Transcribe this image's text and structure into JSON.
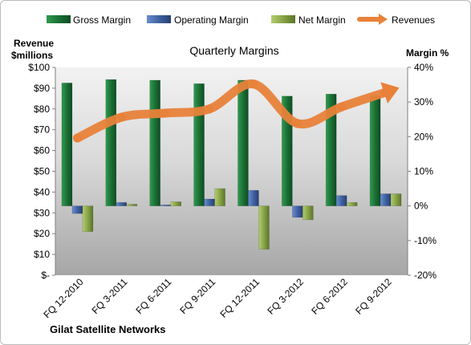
{
  "chart_data": {
    "type": "bar",
    "title": "Quarterly Margins",
    "left_axis_label_line1": "Revenue",
    "left_axis_label_line2": "$millions",
    "right_axis_label": "Margin  %",
    "company": "Gilat Satellite Networks",
    "categories": [
      "FQ 12-2010",
      "FQ 3-2011",
      "FQ 6-2011",
      "FQ 9-2011",
      "FQ 12-2011",
      "FQ 3-2012",
      "FQ 6-2012",
      "FQ 9-2012"
    ],
    "series": [
      {
        "name": "Gross Margin",
        "axis": "right",
        "color": "#1f7a3a",
        "values": [
          35.5,
          36.5,
          36.3,
          35.3,
          36.3,
          31.7,
          32.3,
          31.8
        ]
      },
      {
        "name": "Operating Margin",
        "axis": "right",
        "color": "#4a6eae",
        "values": [
          -2.2,
          1.0,
          0.3,
          2.0,
          4.5,
          -3.3,
          3.0,
          3.5
        ]
      },
      {
        "name": "Net Margin",
        "axis": "right",
        "color": "#8aa54a",
        "values": [
          -7.4,
          0.5,
          1.2,
          5.0,
          -12.5,
          -4.0,
          1.0,
          3.5
        ]
      },
      {
        "name": "Revenues",
        "axis": "left",
        "color": "#e8823a",
        "values": [
          66,
          76,
          78,
          80,
          92,
          73,
          81,
          88
        ]
      }
    ],
    "left_axis": {
      "min": 0,
      "max": 100,
      "step": 10,
      "tick_labels": [
        "$-",
        "$10",
        "$20",
        "$30",
        "$40",
        "$50",
        "$60",
        "$70",
        "$80",
        "$90",
        "$100"
      ]
    },
    "right_axis": {
      "min": -20,
      "max": 40,
      "step": 10,
      "tick_labels": [
        "-20%",
        "-10%",
        "0%",
        "10%",
        "20%",
        "30%",
        "40%"
      ]
    },
    "legend_position": "top",
    "grid": false
  }
}
